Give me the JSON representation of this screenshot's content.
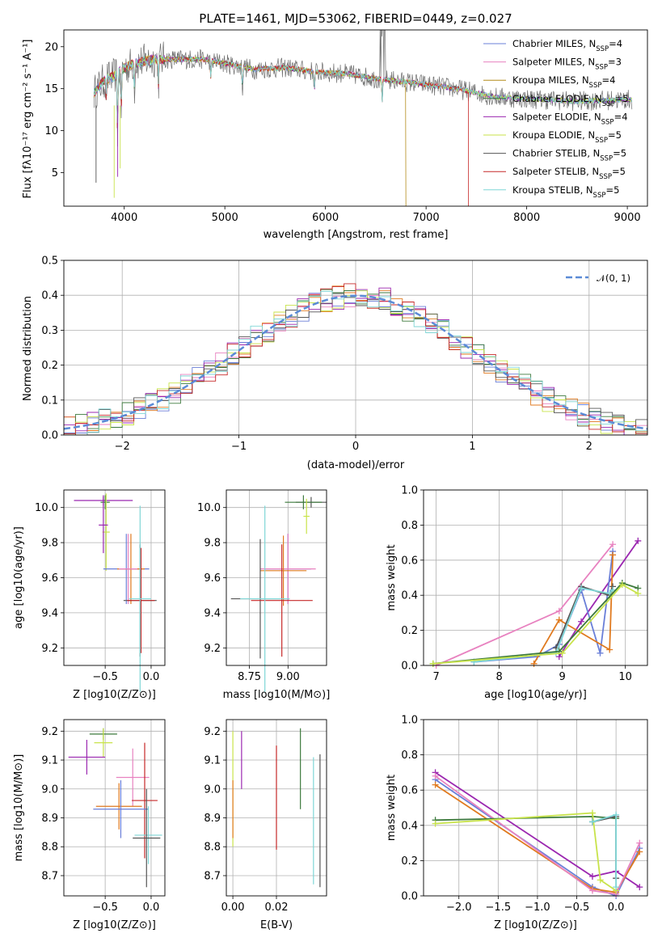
{
  "colors": {
    "c1": "#6a7fd8",
    "c2": "#e882c0",
    "c3": "#e07a1f",
    "c4": "#3d7a3d",
    "c5": "#9b27b0",
    "c6": "#c8e34a",
    "c7": "#555555",
    "c8": "#c62828",
    "c9": "#7fd6d6"
  },
  "chart_data": [
    {
      "id": "spectrum",
      "type": "line",
      "title": "PLATE=1461, MJD=53062, FIBERID=0449, z=0.027",
      "xlabel": "wavelength [Angstrom, rest frame]",
      "ylabel": "Flux [fλ10⁻¹⁷ erg cm⁻² s⁻¹ A⁻¹]",
      "xlim": [
        3400,
        9200
      ],
      "ylim": [
        1,
        22
      ],
      "xticks": [
        4000,
        5000,
        6000,
        7000,
        8000,
        9000
      ],
      "yticks": [
        5,
        10,
        15,
        20
      ],
      "legend_position": "top-right",
      "legend": [
        {
          "label": "Chabrier MILES, N",
          "sub": "SSP",
          "eq": "=4",
          "color": "#6a7fd8"
        },
        {
          "label": "Salpeter MILES, N",
          "sub": "SSP",
          "eq": "=3",
          "color": "#e882c0"
        },
        {
          "label": "Kroupa MILES, N",
          "sub": "SSP",
          "eq": "=4",
          "color": "#b38b1a"
        },
        {
          "label": "Chabrier ELODIE, N",
          "sub": "SSP",
          "eq": "=5",
          "color": "#3d7a3d"
        },
        {
          "label": "Salpeter ELODIE, N",
          "sub": "SSP",
          "eq": "=4",
          "color": "#9b27b0"
        },
        {
          "label": "Kroupa ELODIE, N",
          "sub": "SSP",
          "eq": "=5",
          "color": "#c8e34a"
        },
        {
          "label": "Chabrier STELIB, N",
          "sub": "SSP",
          "eq": "=5",
          "color": "#555555"
        },
        {
          "label": "Salpeter STELIB, N",
          "sub": "SSP",
          "eq": "=5",
          "color": "#c62828"
        },
        {
          "label": "Kroupa STELIB, N",
          "sub": "SSP",
          "eq": "=5",
          "color": "#7fd6d6"
        }
      ],
      "continuum": [
        [
          3700,
          14.5
        ],
        [
          3800,
          16
        ],
        [
          3900,
          16.5
        ],
        [
          4000,
          17.5
        ],
        [
          4100,
          18
        ],
        [
          4300,
          18.5
        ],
        [
          4500,
          18.5
        ],
        [
          4800,
          18.5
        ],
        [
          5000,
          18
        ],
        [
          5300,
          17.3
        ],
        [
          5600,
          17.5
        ],
        [
          5900,
          17
        ],
        [
          6200,
          16.8
        ],
        [
          6500,
          16.2
        ],
        [
          6800,
          15.8
        ],
        [
          7000,
          15.5
        ],
        [
          7300,
          15
        ],
        [
          7700,
          14
        ],
        [
          8000,
          13.8
        ],
        [
          8500,
          13.5
        ],
        [
          9000,
          13.7
        ]
      ]
    },
    {
      "id": "residual-hist",
      "type": "line",
      "xlabel": "(data-model)/error",
      "ylabel": "Normed distribution",
      "xlim": [
        -2.5,
        2.5
      ],
      "ylim": [
        0,
        0.5
      ],
      "xticks": [
        -2,
        -1,
        0,
        1,
        2
      ],
      "yticks": [
        0.0,
        0.1,
        0.2,
        0.3,
        0.4,
        0.5
      ],
      "grid": true,
      "legend_position": "top-right",
      "legend": [
        {
          "label": "𝒩(0, 1)",
          "color": "#5b8bd6"
        }
      ],
      "bin_width": 0.1
    },
    {
      "id": "age-vs-Z",
      "type": "scatter",
      "xlabel": "Z [log10(Z/Z⊙)]",
      "ylabel": "age [log10(age/yr)]",
      "xlim": [
        -0.95,
        0.15
      ],
      "ylim": [
        9.1,
        10.1
      ],
      "xticks": [
        -0.5,
        0.0
      ],
      "yticks": [
        9.2,
        9.4,
        9.6,
        9.8,
        10.0
      ],
      "grid": true,
      "points": [
        {
          "x": -0.52,
          "xerr": 0.32,
          "y": 10.04,
          "yerr": 0.03,
          "color": "#9b27b0"
        },
        {
          "x": -0.5,
          "xerr": 0.05,
          "y": 10.03,
          "yerr": 0.04,
          "color": "#3d7a3d"
        },
        {
          "x": -0.49,
          "xerr": 0.04,
          "y": 9.86,
          "yerr": 0.22,
          "color": "#c8e34a"
        },
        {
          "x": -0.52,
          "xerr": 0.05,
          "y": 9.9,
          "yerr": 0.16,
          "color": "#9b27b0"
        },
        {
          "x": -0.27,
          "xerr": 0.25,
          "y": 9.65,
          "yerr": 0.2,
          "color": "#6a7fd8"
        },
        {
          "x": -0.22,
          "xerr": 0.15,
          "y": 9.65,
          "yerr": 0.2,
          "color": "#e07a1f"
        },
        {
          "x": -0.25,
          "xerr": 0.1,
          "y": 9.65,
          "yerr": 0.2,
          "color": "#e882c0"
        },
        {
          "x": -0.12,
          "xerr": 0.18,
          "y": 9.47,
          "yerr": 0.32,
          "color": "#555555"
        },
        {
          "x": -0.11,
          "xerr": 0.15,
          "y": 9.47,
          "yerr": 0.3,
          "color": "#c62828"
        },
        {
          "x": -0.12,
          "xerr": 0.12,
          "y": 9.48,
          "yerr": 0.53,
          "color": "#7fd6d6"
        }
      ]
    },
    {
      "id": "age-vs-mass",
      "type": "scatter",
      "xlabel": "mass [log10(M/M⊙)]",
      "xlim": [
        8.6,
        9.25
      ],
      "ylim": [
        9.1,
        10.1
      ],
      "xticks": [
        8.75,
        9.0
      ],
      "yticks": [
        9.2,
        9.4,
        9.6,
        9.8,
        10.0
      ],
      "grid": true,
      "points": [
        {
          "x": 9.15,
          "xerr": 0.1,
          "y": 10.03,
          "yerr": 0.03,
          "color": "#555555"
        },
        {
          "x": 9.1,
          "xerr": 0.12,
          "y": 10.03,
          "yerr": 0.04,
          "color": "#3d7a3d"
        },
        {
          "x": 9.12,
          "xerr": 0.02,
          "y": 9.95,
          "yerr": 0.1,
          "color": "#c8e34a"
        },
        {
          "x": 9.0,
          "xerr": 0.15,
          "y": 9.65,
          "yerr": 0.2,
          "color": "#6a7fd8"
        },
        {
          "x": 9.0,
          "xerr": 0.18,
          "y": 9.65,
          "yerr": 0.2,
          "color": "#e882c0"
        },
        {
          "x": 8.97,
          "xerr": 0.15,
          "y": 9.64,
          "yerr": 0.2,
          "color": "#e07a1f"
        },
        {
          "x": 8.82,
          "xerr": 0.19,
          "y": 9.48,
          "yerr": 0.34,
          "color": "#555555"
        },
        {
          "x": 8.96,
          "xerr": 0.2,
          "y": 9.47,
          "yerr": 0.32,
          "color": "#c62828"
        },
        {
          "x": 8.85,
          "xerr": 0.16,
          "y": 9.48,
          "yerr": 0.53,
          "color": "#7fd6d6"
        }
      ]
    },
    {
      "id": "massweight-vs-age",
      "type": "line",
      "xlabel": "age [log10(age/yr)]",
      "ylabel": "mass weight",
      "xlim": [
        6.8,
        10.35
      ],
      "ylim": [
        0,
        1.0
      ],
      "xticks": [
        7,
        8,
        9,
        10
      ],
      "yticks": [
        0.0,
        0.2,
        0.4,
        0.6,
        0.8,
        1.0
      ],
      "grid": true,
      "series": [
        {
          "color": "#e882c0",
          "x": [
            7.0,
            8.95,
            9.8
          ],
          "y": [
            0.0,
            0.31,
            0.69
          ]
        },
        {
          "color": "#9b27b0",
          "x": [
            8.95,
            9.3,
            10.2
          ],
          "y": [
            0.05,
            0.25,
            0.71
          ]
        },
        {
          "color": "#6a7fd8",
          "x": [
            7.6,
            8.6,
            8.95,
            9.3,
            9.6,
            9.8
          ],
          "y": [
            0.02,
            0.05,
            0.12,
            0.43,
            0.07,
            0.65
          ]
        },
        {
          "color": "#e07a1f",
          "x": [
            8.55,
            8.95,
            9.75,
            9.8
          ],
          "y": [
            0.01,
            0.26,
            0.09,
            0.63
          ]
        },
        {
          "color": "#555555",
          "x": [
            8.9,
            9.3,
            9.75,
            9.8
          ],
          "y": [
            0.1,
            0.45,
            0.4,
            0.45
          ]
        },
        {
          "color": "#7fd6d6",
          "x": [
            7.6,
            8.9,
            9.3,
            9.75,
            9.8
          ],
          "y": [
            0.02,
            0.07,
            0.44,
            0.41,
            0.43
          ]
        },
        {
          "color": "#3d7a3d",
          "x": [
            6.95,
            8.95,
            9.95,
            10.2
          ],
          "y": [
            0.01,
            0.08,
            0.47,
            0.44
          ]
        },
        {
          "color": "#c8e34a",
          "x": [
            6.95,
            9.0,
            9.95,
            10.2
          ],
          "y": [
            0.01,
            0.07,
            0.46,
            0.41
          ]
        }
      ]
    },
    {
      "id": "mass-vs-Z",
      "type": "scatter",
      "xlabel": "Z [log10(Z/Z⊙)]",
      "ylabel": "mass [log10(M/M⊙)]",
      "xlim": [
        -0.95,
        0.15
      ],
      "ylim": [
        8.63,
        9.24
      ],
      "xticks": [
        -0.5,
        0.0
      ],
      "yticks": [
        8.7,
        8.8,
        8.9,
        9.0,
        9.1,
        9.2
      ],
      "grid": true,
      "points": [
        {
          "x": -0.52,
          "xerr": 0.15,
          "y": 9.19,
          "yerr": 0.02,
          "color": "#3d7a3d"
        },
        {
          "x": -0.52,
          "xerr": 0.1,
          "y": 9.16,
          "yerr": 0.05,
          "color": "#c8e34a"
        },
        {
          "x": -0.7,
          "xerr": 0.2,
          "y": 9.11,
          "yerr": 0.06,
          "color": "#9b27b0"
        },
        {
          "x": -0.2,
          "xerr": 0.18,
          "y": 9.04,
          "yerr": 0.1,
          "color": "#e882c0"
        },
        {
          "x": -0.07,
          "xerr": 0.14,
          "y": 8.96,
          "yerr": 0.2,
          "color": "#c62828"
        },
        {
          "x": -0.35,
          "xerr": 0.25,
          "y": 8.94,
          "yerr": 0.08,
          "color": "#e07a1f"
        },
        {
          "x": -0.33,
          "xerr": 0.3,
          "y": 8.93,
          "yerr": 0.1,
          "color": "#6a7fd8"
        },
        {
          "x": -0.03,
          "xerr": 0.15,
          "y": 8.84,
          "yerr": 0.1,
          "color": "#7fd6d6"
        },
        {
          "x": -0.05,
          "xerr": 0.15,
          "y": 8.83,
          "yerr": 0.17,
          "color": "#555555"
        }
      ]
    },
    {
      "id": "mass-vs-EBV",
      "type": "scatter",
      "xlabel": "E(B-V)",
      "xlim": [
        -0.003,
        0.043
      ],
      "ylim": [
        8.63,
        9.24
      ],
      "xticks": [
        0.0,
        0.02
      ],
      "yticks": [
        8.7,
        8.8,
        8.9,
        9.0,
        9.1,
        9.2
      ],
      "grid": true,
      "points": [
        {
          "x": 0.0,
          "y": 9.0,
          "yerr": 0.2,
          "color": "#c8e34a"
        },
        {
          "x": 0.0,
          "y": 8.93,
          "yerr": 0.1,
          "color": "#e07a1f"
        },
        {
          "x": 0.004,
          "y": 9.1,
          "yerr": 0.1,
          "color": "#9b27b0"
        },
        {
          "x": 0.02,
          "y": 8.97,
          "yerr": 0.18,
          "color": "#c62828"
        },
        {
          "x": 0.031,
          "y": 9.07,
          "yerr": 0.14,
          "color": "#3d7a3d"
        },
        {
          "x": 0.037,
          "y": 8.89,
          "yerr": 0.22,
          "color": "#7fd6d6"
        },
        {
          "x": 0.04,
          "y": 8.89,
          "yerr": 0.23,
          "color": "#555555"
        }
      ]
    },
    {
      "id": "massweight-vs-Z",
      "type": "line",
      "xlabel": "Z [log10(Z/Z⊙)]",
      "ylabel": "mass weight",
      "xlim": [
        -2.45,
        0.4
      ],
      "ylim": [
        0,
        1.0
      ],
      "xticks": [
        -2.0,
        -1.5,
        -1.0,
        -0.5,
        0.0
      ],
      "yticks": [
        0.0,
        0.2,
        0.4,
        0.6,
        0.8,
        1.0
      ],
      "grid": true,
      "series": [
        {
          "color": "#9b27b0",
          "x": [
            -2.3,
            -0.3,
            0.0,
            0.3
          ],
          "y": [
            0.7,
            0.11,
            0.14,
            0.05
          ]
        },
        {
          "color": "#6a7fd8",
          "x": [
            -2.3,
            -0.3,
            0.0,
            0.3
          ],
          "y": [
            0.66,
            0.05,
            0.0,
            0.27
          ]
        },
        {
          "color": "#e07a1f",
          "x": [
            -2.3,
            -0.3,
            0.0,
            0.3
          ],
          "y": [
            0.63,
            0.04,
            0.02,
            0.25
          ]
        },
        {
          "color": "#e882c0",
          "x": [
            -2.3,
            -0.3,
            0.0,
            0.3
          ],
          "y": [
            0.68,
            0.03,
            0.01,
            0.3
          ]
        },
        {
          "color": "#3d7a3d",
          "x": [
            -2.3,
            -0.3,
            0.0
          ],
          "y": [
            0.43,
            0.45,
            0.44
          ]
        },
        {
          "color": "#c8e34a",
          "x": [
            -2.3,
            -0.3,
            -0.2,
            0.0
          ],
          "y": [
            0.41,
            0.47,
            0.09,
            0.03
          ]
        },
        {
          "color": "#555555",
          "x": [
            -0.3,
            0.0,
            0.0
          ],
          "y": [
            0.42,
            0.45,
            0.1
          ]
        },
        {
          "color": "#7fd6d6",
          "x": [
            -0.3,
            0.0,
            0.0
          ],
          "y": [
            0.42,
            0.46,
            0.05
          ]
        }
      ]
    }
  ]
}
